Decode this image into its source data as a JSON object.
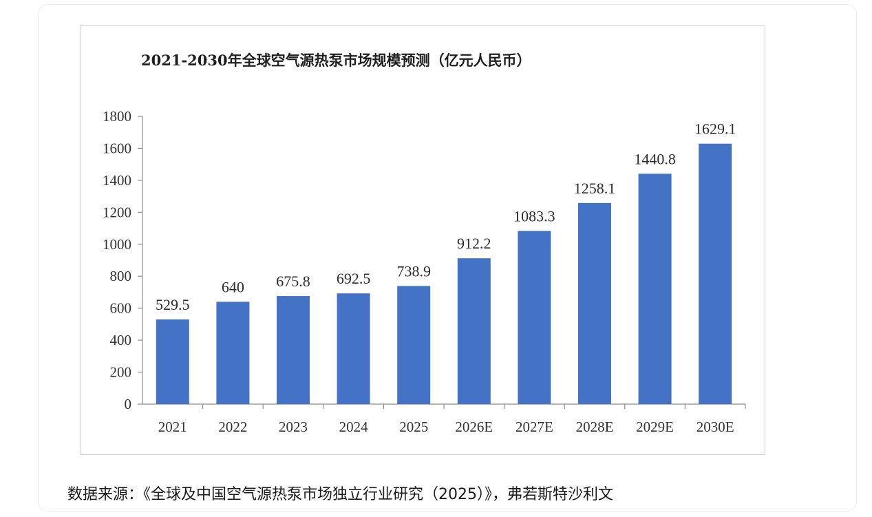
{
  "chart_data": {
    "type": "bar",
    "title": "2021-2030年全球空气源热泵市场规模预测（亿元人民币）",
    "categories": [
      "2021",
      "2022",
      "2023",
      "2024",
      "2025",
      "2026E",
      "2027E",
      "2028E",
      "2029E",
      "2030E"
    ],
    "values": [
      529.5,
      640,
      675.8,
      692.5,
      738.9,
      912.2,
      1083.3,
      1258.1,
      1440.8,
      1629.1
    ],
    "value_labels": [
      "529.5",
      "640",
      "675.8",
      "692.5",
      "738.9",
      "912.2",
      "1083.3",
      "1258.1",
      "1440.8",
      "1629.1"
    ],
    "ylim": [
      0,
      1800
    ],
    "yticks": [
      0,
      200,
      400,
      600,
      800,
      1000,
      1200,
      1400,
      1600,
      1800
    ],
    "xlabel": "",
    "ylabel": "",
    "grid": false,
    "legend": "none",
    "bar_color": "#4472c4"
  },
  "source_note": "数据来源：《全球及中国空气源热泵市场独立行业研究（2025）》，弗若斯特沙利文"
}
